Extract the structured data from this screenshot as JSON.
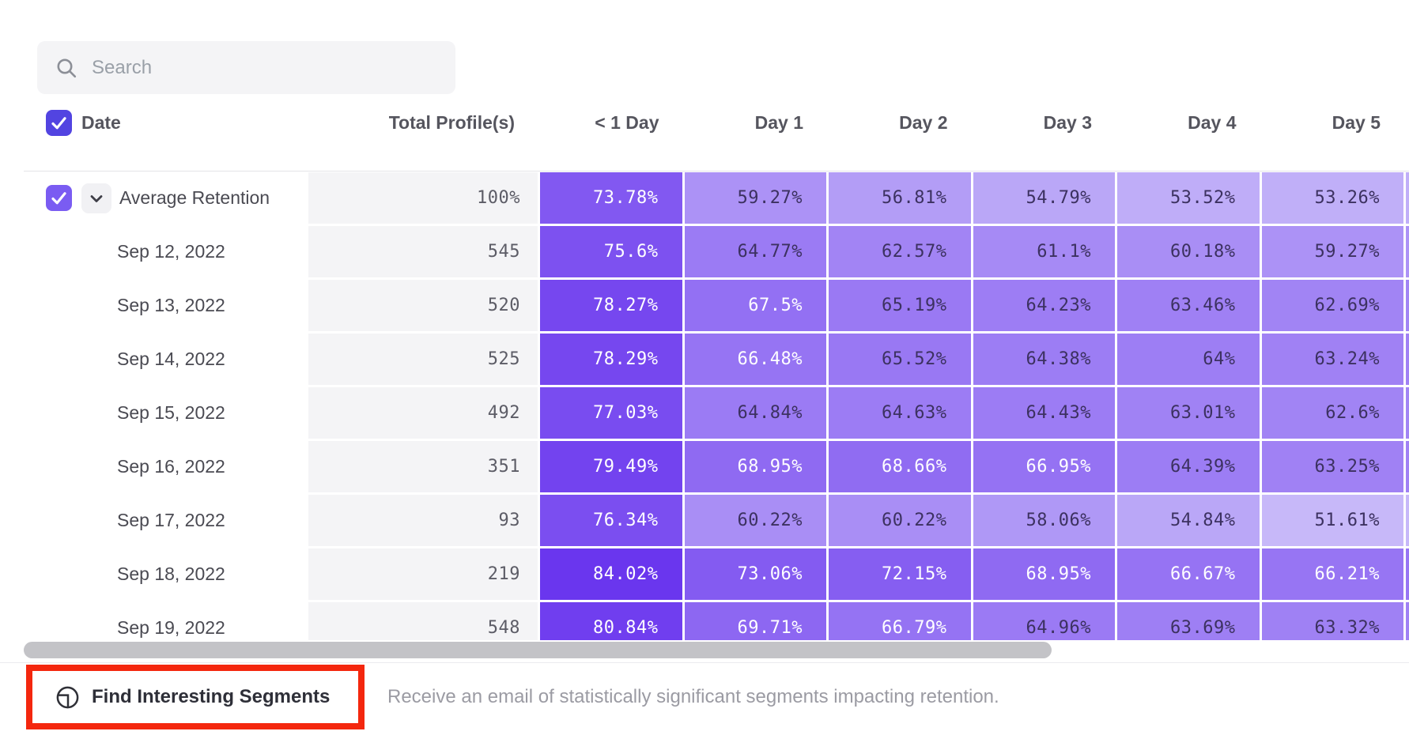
{
  "search": {
    "placeholder": "Search"
  },
  "table": {
    "header": {
      "date": "Date",
      "total": "Total Profile(s)",
      "days": [
        "< 1 Day",
        "Day 1",
        "Day 2",
        "Day 3",
        "Day 4",
        "Day 5"
      ]
    },
    "rows": [
      {
        "kind": "average",
        "label": "Average Retention",
        "total": "100%",
        "cells": [
          "73.78%",
          "59.27%",
          "56.81%",
          "54.79%",
          "53.52%",
          "53.26%"
        ]
      },
      {
        "kind": "date",
        "label": "Sep 12, 2022",
        "total": "545",
        "cells": [
          "75.6%",
          "64.77%",
          "62.57%",
          "61.1%",
          "60.18%",
          "59.27%"
        ]
      },
      {
        "kind": "date",
        "label": "Sep 13, 2022",
        "total": "520",
        "cells": [
          "78.27%",
          "67.5%",
          "65.19%",
          "64.23%",
          "63.46%",
          "62.69%"
        ]
      },
      {
        "kind": "date",
        "label": "Sep 14, 2022",
        "total": "525",
        "cells": [
          "78.29%",
          "66.48%",
          "65.52%",
          "64.38%",
          "64%",
          "63.24%"
        ]
      },
      {
        "kind": "date",
        "label": "Sep 15, 2022",
        "total": "492",
        "cells": [
          "77.03%",
          "64.84%",
          "64.63%",
          "64.43%",
          "63.01%",
          "62.6%"
        ]
      },
      {
        "kind": "date",
        "label": "Sep 16, 2022",
        "total": "351",
        "cells": [
          "79.49%",
          "68.95%",
          "68.66%",
          "66.95%",
          "64.39%",
          "63.25%"
        ]
      },
      {
        "kind": "date",
        "label": "Sep 17, 2022",
        "total": "93",
        "cells": [
          "76.34%",
          "60.22%",
          "60.22%",
          "58.06%",
          "54.84%",
          "51.61%"
        ]
      },
      {
        "kind": "date",
        "label": "Sep 18, 2022",
        "total": "219",
        "cells": [
          "84.02%",
          "73.06%",
          "72.15%",
          "68.95%",
          "66.67%",
          "66.21%"
        ]
      },
      {
        "kind": "date",
        "label": "Sep 19, 2022",
        "total": "548",
        "cells": [
          "80.84%",
          "69.71%",
          "66.79%",
          "64.96%",
          "63.69%",
          "63.32%"
        ]
      }
    ]
  },
  "heatmap": {
    "low_color": "#cabdf9",
    "high_color": "#6a36ee",
    "domain": [
      51,
      83
    ],
    "gamma": 0.85,
    "light_text_min": 66,
    "light_text": "#ffffff",
    "dark_text": "#3c3160"
  },
  "footer": {
    "button_label": "Find Interesting Segments",
    "description": "Receive an email of statistically significant segments impacting retention."
  },
  "colors": {
    "accent_purple": "#7a5cf2",
    "checkbox_blue": "#5244e1",
    "annotation_red": "#f4270e"
  }
}
